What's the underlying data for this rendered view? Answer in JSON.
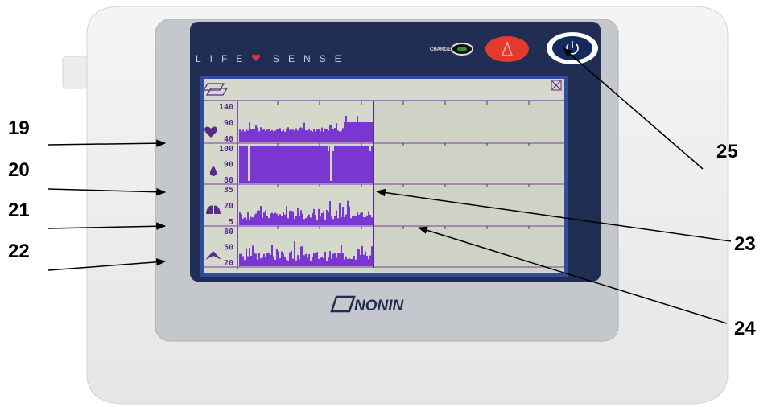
{
  "device": {
    "brand_left": "LIFE",
    "brand_right": "SENSE",
    "charge": "CHARGE",
    "logo": "NONIN"
  },
  "screen": {
    "channels": [
      {
        "scale": [
          "140",
          "90",
          "40"
        ]
      },
      {
        "scale": [
          "100",
          "90",
          "80"
        ]
      },
      {
        "scale": [
          "35",
          "20",
          "5"
        ]
      },
      {
        "scale": [
          "80",
          "50",
          "20"
        ]
      }
    ]
  },
  "callouts": [
    "19",
    "20",
    "21",
    "22",
    "23",
    "24",
    "25"
  ]
}
